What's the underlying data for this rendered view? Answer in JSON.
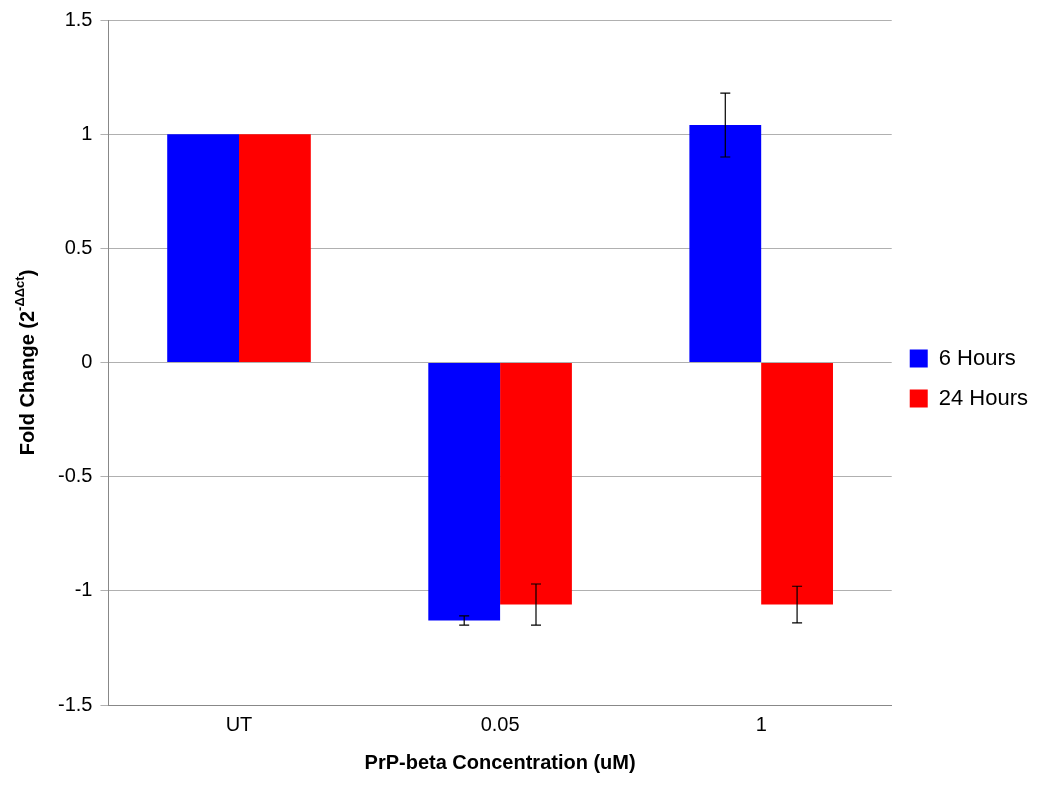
{
  "chart_data": {
    "type": "bar",
    "xlabel": "PrP-beta Concentration (uM)",
    "ylabel": "Fold Change (2$^{-ΔΔct}$)",
    "categories": [
      "UT",
      "0.05",
      "1"
    ],
    "series": [
      {
        "name": "6 Hours",
        "color": "#0000ff",
        "values": [
          1,
          -1.13,
          1.04
        ],
        "errors": [
          null,
          0.02,
          0.14
        ]
      },
      {
        "name": "24 Hours",
        "color": "#ff0000",
        "values": [
          1,
          -1.06,
          -1.06
        ],
        "errors": [
          null,
          0.09,
          0.08
        ]
      }
    ],
    "ylim": [
      -1.5,
      1.5
    ],
    "yticks": [
      -1.5,
      -1,
      -0.5,
      0,
      0.5,
      1,
      1.5
    ],
    "grid": "y",
    "legend": "right"
  }
}
